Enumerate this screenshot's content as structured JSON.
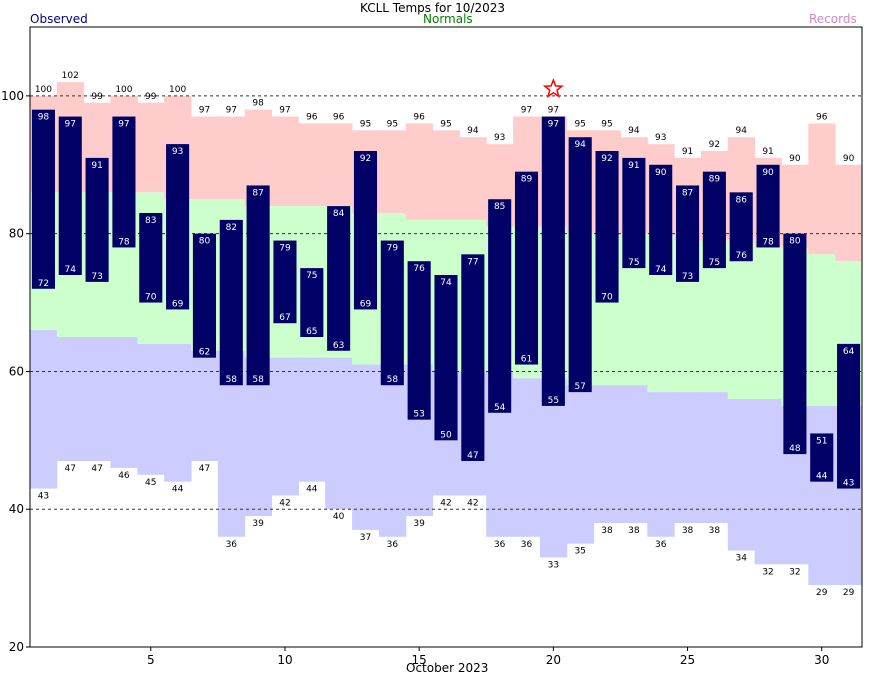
{
  "chart_data": {
    "type": "bar",
    "title": "KCLL Temps for 10/2023",
    "legend": {
      "observed": "Observed",
      "normals": "Normals",
      "records": "Records",
      "placement": "top"
    },
    "xlabel": "October 2023",
    "ylabel": "",
    "xlim": [
      0.5,
      31.5
    ],
    "ylim": [
      20,
      110
    ],
    "x_ticks": [
      5,
      10,
      15,
      20,
      25,
      30
    ],
    "y_ticks": [
      20,
      40,
      60,
      80,
      100
    ],
    "grid_y": [
      40,
      60,
      80,
      100
    ],
    "days": [
      1,
      2,
      3,
      4,
      5,
      6,
      7,
      8,
      9,
      10,
      11,
      12,
      13,
      14,
      15,
      16,
      17,
      18,
      19,
      20,
      21,
      22,
      23,
      24,
      25,
      26,
      27,
      28,
      29,
      30,
      31
    ],
    "record_high": [
      100,
      102,
      99,
      100,
      99,
      100,
      97,
      97,
      98,
      97,
      96,
      96,
      95,
      95,
      96,
      95,
      94,
      93,
      97,
      97,
      95,
      95,
      94,
      93,
      91,
      92,
      94,
      91,
      90,
      96,
      90
    ],
    "record_low": [
      43,
      47,
      47,
      46,
      45,
      44,
      47,
      36,
      39,
      42,
      44,
      40,
      37,
      36,
      39,
      42,
      42,
      36,
      36,
      33,
      35,
      38,
      38,
      36,
      38,
      38,
      34,
      32,
      32,
      29,
      29
    ],
    "normal_high": [
      86,
      86,
      86,
      86,
      86,
      85,
      85,
      85,
      84,
      84,
      84,
      84,
      83,
      83,
      82,
      82,
      82,
      81,
      81,
      81,
      80,
      80,
      80,
      80,
      79,
      79,
      79,
      78,
      78,
      77,
      76
    ],
    "normal_low": [
      66,
      65,
      65,
      65,
      64,
      64,
      63,
      63,
      62,
      62,
      62,
      62,
      61,
      61,
      61,
      60,
      60,
      60,
      59,
      59,
      58,
      58,
      58,
      57,
      57,
      57,
      56,
      56,
      55,
      55,
      55
    ],
    "observed_high": [
      98,
      97,
      91,
      97,
      83,
      93,
      80,
      82,
      87,
      79,
      75,
      84,
      92,
      79,
      76,
      74,
      77,
      85,
      89,
      97,
      94,
      92,
      91,
      90,
      87,
      89,
      86,
      90,
      80,
      51,
      64
    ],
    "observed_low": [
      72,
      74,
      73,
      78,
      70,
      69,
      62,
      58,
      58,
      67,
      65,
      63,
      69,
      58,
      53,
      50,
      47,
      54,
      61,
      55,
      57,
      70,
      75,
      74,
      73,
      75,
      76,
      78,
      48,
      44,
      43
    ],
    "record_marker": {
      "day": 20,
      "value": 101
    },
    "colors": {
      "observed": "#000066",
      "normals_band": "#ccffcc",
      "record_high_band": "#ffcccc",
      "record_low_band": "#ccccff",
      "observed_legend": "#000080",
      "normals_legend": "#008000",
      "records_legend": "#cc88cc",
      "star": "#ff0000"
    }
  }
}
